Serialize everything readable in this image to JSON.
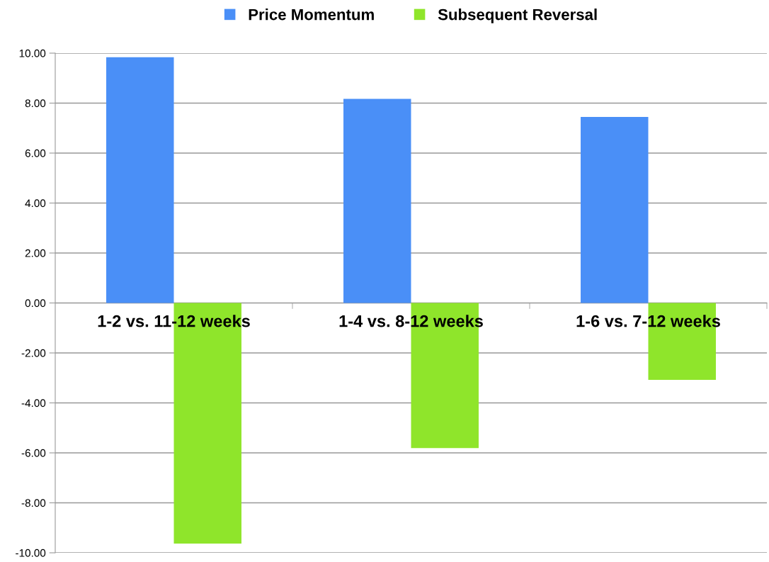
{
  "chart_data": {
    "type": "bar",
    "categories": [
      "1-2 vs. 11-12 weeks",
      "1-4 vs. 8-12 weeks",
      "1-6 vs. 7-12 weeks"
    ],
    "series": [
      {
        "name": "Price Momentum",
        "color": "#4a8ff7",
        "values": [
          9.84,
          8.17,
          7.45
        ]
      },
      {
        "name": "Subsequent Reversal",
        "color": "#8fe52b",
        "values": [
          -9.63,
          -5.81,
          -3.08
        ]
      }
    ],
    "ylim": [
      -10,
      10
    ],
    "yticks": [
      {
        "value": -10,
        "label": "-10.00"
      },
      {
        "value": -8,
        "label": "-8.00"
      },
      {
        "value": -6,
        "label": "-6.00"
      },
      {
        "value": -4,
        "label": "-4.00"
      },
      {
        "value": -2,
        "label": "-2.00"
      },
      {
        "value": 0,
        "label": "0.00"
      },
      {
        "value": 2,
        "label": "2.00"
      },
      {
        "value": 4,
        "label": "4.00"
      },
      {
        "value": 6,
        "label": "6.00"
      },
      {
        "value": 8,
        "label": "8.00"
      },
      {
        "value": 10,
        "label": "10.00"
      }
    ],
    "grid": "y",
    "legend": "top"
  }
}
